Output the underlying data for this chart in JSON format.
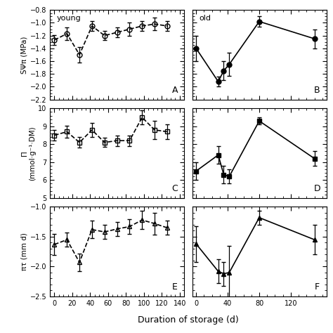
{
  "panel_A": {
    "label": "young",
    "x": [
      0,
      14,
      28,
      42,
      56,
      70,
      84,
      98,
      112,
      126
    ],
    "y": [
      -1.27,
      -1.17,
      -1.5,
      -1.05,
      -1.2,
      -1.15,
      -1.1,
      -1.05,
      -1.02,
      -1.05
    ],
    "yerr": [
      0.08,
      0.1,
      0.12,
      0.08,
      0.07,
      0.08,
      0.1,
      0.08,
      0.1,
      0.08
    ],
    "ylim": [
      -2.2,
      -0.8
    ],
    "yticks": [
      -2.2,
      -2.0,
      -1.8,
      -1.6,
      -1.4,
      -1.2,
      -1.0,
      -0.8
    ],
    "xlim": [
      -5,
      145
    ],
    "xticks": [
      0,
      20,
      40,
      60,
      80,
      100,
      120,
      140
    ],
    "panel_id": "A",
    "linestyle": "dashed",
    "marker": "o",
    "fillstyle": "none"
  },
  "panel_B": {
    "label": "old",
    "x": [
      0,
      28,
      35,
      42,
      80,
      150
    ],
    "y": [
      -1.4,
      -1.92,
      -1.75,
      -1.65,
      -0.98,
      -1.25
    ],
    "yerr": [
      0.2,
      0.08,
      0.15,
      0.18,
      0.08,
      0.15
    ],
    "ylim": [
      -2.2,
      -0.8
    ],
    "yticks": [
      -2.2,
      -2.0,
      -1.8,
      -1.6,
      -1.4,
      -1.2,
      -1.0,
      -0.8
    ],
    "xlim": [
      -5,
      165
    ],
    "xticks": [
      0,
      40,
      80,
      120
    ],
    "panel_id": "B",
    "linestyle": "solid",
    "marker": "o",
    "fillstyle": "full"
  },
  "panel_C": {
    "label": "",
    "x": [
      0,
      14,
      28,
      42,
      56,
      70,
      84,
      98,
      112,
      126
    ],
    "y": [
      8.5,
      8.7,
      8.1,
      8.8,
      8.1,
      8.2,
      8.2,
      9.5,
      8.8,
      8.7
    ],
    "yerr": [
      0.3,
      0.35,
      0.3,
      0.4,
      0.25,
      0.3,
      0.3,
      0.4,
      0.5,
      0.4
    ],
    "ylim": [
      5.0,
      10.0
    ],
    "yticks": [
      5.0,
      6.0,
      7.0,
      8.0,
      9.0,
      10.0
    ],
    "xlim": [
      -5,
      145
    ],
    "xticks": [
      0,
      20,
      40,
      60,
      80,
      100,
      120,
      140
    ],
    "panel_id": "C",
    "linestyle": "dashed",
    "marker": "s",
    "fillstyle": "none"
  },
  "panel_D": {
    "label": "",
    "x": [
      0,
      28,
      35,
      42,
      80,
      150
    ],
    "y": [
      6.5,
      7.4,
      6.3,
      6.2,
      9.3,
      7.2
    ],
    "yerr": [
      0.5,
      0.5,
      0.5,
      0.4,
      0.2,
      0.4
    ],
    "ylim": [
      5.0,
      10.0
    ],
    "yticks": [
      5.0,
      6.0,
      7.0,
      8.0,
      9.0,
      10.0
    ],
    "xlim": [
      -5,
      165
    ],
    "xticks": [
      0,
      40,
      80,
      120
    ],
    "panel_id": "D",
    "linestyle": "solid",
    "marker": "s",
    "fillstyle": "full"
  },
  "panel_E": {
    "label": "",
    "x": [
      0,
      14,
      28,
      42,
      56,
      70,
      84,
      98,
      112,
      126
    ],
    "y": [
      -1.63,
      -1.55,
      -1.93,
      -1.38,
      -1.42,
      -1.37,
      -1.33,
      -1.22,
      -1.28,
      -1.35
    ],
    "yerr": [
      0.18,
      0.12,
      0.15,
      0.15,
      0.12,
      0.12,
      0.12,
      0.15,
      0.18,
      0.12
    ],
    "ylim": [
      -2.5,
      -1.0
    ],
    "yticks": [
      -2.5,
      -2.0,
      -1.5,
      -1.0
    ],
    "xlim": [
      -5,
      145
    ],
    "xticks": [
      0,
      20,
      40,
      60,
      80,
      100,
      120,
      140
    ],
    "panel_id": "E",
    "linestyle": "dashed",
    "marker": "^",
    "fillstyle": "none"
  },
  "panel_F": {
    "label": "",
    "x": [
      0,
      28,
      35,
      42,
      80,
      150
    ],
    "y": [
      -1.62,
      -2.08,
      -2.12,
      -2.1,
      -1.18,
      -1.55
    ],
    "yerr": [
      0.3,
      0.2,
      0.2,
      0.45,
      0.12,
      0.25
    ],
    "ylim": [
      -2.5,
      -1.0
    ],
    "yticks": [
      -2.5,
      -2.0,
      -1.5,
      -1.0
    ],
    "xlim": [
      -5,
      165
    ],
    "xticks": [
      0,
      40,
      80,
      120
    ],
    "panel_id": "F",
    "linestyle": "solid",
    "marker": "^",
    "fillstyle": "full"
  },
  "ylabel_AB": "SΨπ (MPa)",
  "ylabel_CD": "Π\n(mmol·g⁻¹·DM)",
  "ylabel_EF": "πτ (mm d)",
  "xlabel": "Duration of storage (d)",
  "capsize": 2.5,
  "elinewidth": 0.9,
  "markersize": 5,
  "linewidth": 1.2
}
